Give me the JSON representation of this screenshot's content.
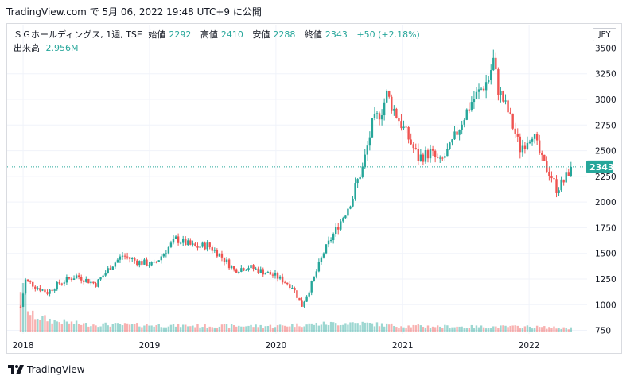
{
  "header": {
    "text": "TradingView.com で 5月 06, 2022 19:48 UTC+9 に公開"
  },
  "legend": {
    "symbol": "ＳＧホールディングス, 1週, TSE",
    "open_label": "始値",
    "open": "2292",
    "high_label": "高値",
    "high": "2410",
    "low_label": "安値",
    "low": "2288",
    "close_label": "終値",
    "close": "2343",
    "change": "+50 (+2.18%)"
  },
  "volume_legend": {
    "label": "出来高",
    "value": "2.956M"
  },
  "currency": "JPY",
  "price_tag": "2343",
  "footer": {
    "brand": "TradingView"
  },
  "colors": {
    "up": "#26a69a",
    "down": "#ef5350",
    "grid": "#f0f3fa",
    "axis_text": "#131722"
  },
  "chart_data": {
    "type": "candlestick",
    "interval": "1 week",
    "y_ticks": [
      750,
      1000,
      1250,
      1500,
      1750,
      2000,
      2250,
      2500,
      2750,
      3000,
      3250,
      3500
    ],
    "x_ticks": [
      "2018",
      "2019",
      "2020",
      "2021",
      "2022"
    ],
    "ylim": [
      700,
      3550
    ],
    "xlim": [
      "2017-12-25",
      "2022-05-30"
    ],
    "last_price": 2343,
    "price_points": [
      [
        "2017-12-25",
        980
      ],
      [
        "2018-01-08",
        1240
      ],
      [
        "2018-02-05",
        1180
      ],
      [
        "2018-03-12",
        1120
      ],
      [
        "2018-04-16",
        1210
      ],
      [
        "2018-06-04",
        1280
      ],
      [
        "2018-07-30",
        1200
      ],
      [
        "2018-09-10",
        1370
      ],
      [
        "2018-10-15",
        1480
      ],
      [
        "2018-11-26",
        1420
      ],
      [
        "2019-01-14",
        1390
      ],
      [
        "2019-02-18",
        1530
      ],
      [
        "2019-03-18",
        1640
      ],
      [
        "2019-05-13",
        1560
      ],
      [
        "2019-06-17",
        1580
      ],
      [
        "2019-07-22",
        1490
      ],
      [
        "2019-09-02",
        1340
      ],
      [
        "2019-10-14",
        1370
      ],
      [
        "2019-11-25",
        1320
      ],
      [
        "2019-12-30",
        1280
      ],
      [
        "2020-02-17",
        1180
      ],
      [
        "2020-03-16",
        990
      ],
      [
        "2020-04-13",
        1200
      ],
      [
        "2020-05-18",
        1510
      ],
      [
        "2020-06-22",
        1730
      ],
      [
        "2020-07-20",
        1900
      ],
      [
        "2020-08-10",
        2050
      ],
      [
        "2020-08-17",
        2150
      ],
      [
        "2020-09-07",
        2330
      ],
      [
        "2020-10-05",
        2750
      ],
      [
        "2020-11-02",
        2900
      ],
      [
        "2020-11-16",
        3050
      ],
      [
        "2020-12-14",
        2850
      ],
      [
        "2021-01-18",
        2620
      ],
      [
        "2021-02-15",
        2430
      ],
      [
        "2021-03-22",
        2480
      ],
      [
        "2021-04-19",
        2380
      ],
      [
        "2021-05-17",
        2520
      ],
      [
        "2021-06-21",
        2790
      ],
      [
        "2021-07-19",
        2980
      ],
      [
        "2021-08-16",
        3100
      ],
      [
        "2021-09-06",
        3200
      ],
      [
        "2021-09-20",
        3380
      ],
      [
        "2021-10-04",
        3100
      ],
      [
        "2021-11-01",
        2880
      ],
      [
        "2021-12-06",
        2520
      ],
      [
        "2022-01-10",
        2680
      ],
      [
        "2022-02-07",
        2400
      ],
      [
        "2022-03-07",
        2250
      ],
      [
        "2022-03-21",
        2130
      ],
      [
        "2022-04-11",
        2200
      ],
      [
        "2022-05-02",
        2343
      ]
    ],
    "volume_points": [
      [
        "2017-12-25",
        60
      ],
      [
        "2018-01-22",
        22
      ],
      [
        "2018-04-02",
        14
      ],
      [
        "2018-07-02",
        10
      ],
      [
        "2019-01-07",
        9
      ],
      [
        "2019-07-01",
        8
      ],
      [
        "2020-01-06",
        8
      ],
      [
        "2020-04-06",
        10
      ],
      [
        "2020-08-10",
        12
      ],
      [
        "2021-01-04",
        8
      ],
      [
        "2021-07-05",
        7
      ],
      [
        "2022-01-03",
        7
      ],
      [
        "2022-05-02",
        5
      ]
    ]
  }
}
